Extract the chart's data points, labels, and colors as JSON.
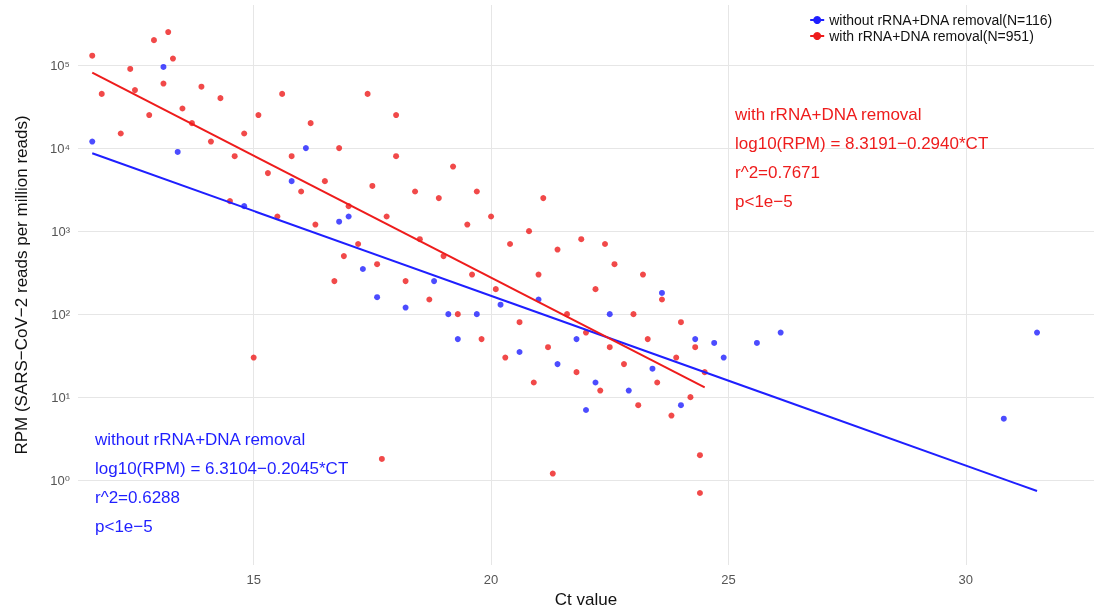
{
  "chart_data": {
    "type": "scatter",
    "xlabel": "Ct value",
    "ylabel": "RPM (SARS−CoV−2 reads per million reads)",
    "xlim": [
      11.3,
      32.7
    ],
    "xticks": [
      15,
      20,
      25,
      30
    ],
    "ylim": [
      0.095,
      530000
    ],
    "yticks": [
      {
        "value": 1,
        "label": "10⁰"
      },
      {
        "value": 10,
        "label": "10¹"
      },
      {
        "value": 100,
        "label": "10²"
      },
      {
        "value": 1000,
        "label": "10³"
      },
      {
        "value": 10000,
        "label": "10⁴"
      },
      {
        "value": 100000,
        "label": "10⁵"
      }
    ],
    "log": "y",
    "grid": true,
    "legend": "top right",
    "series": [
      {
        "color": "#1f1fff",
        "marker": "circle",
        "x": [
          11.6,
          13.1,
          13.4,
          14.8,
          15.8,
          16.8,
          17.3,
          17.6,
          18.2,
          18.8,
          19.3,
          19.7,
          20.2,
          20.6,
          21.0,
          21.4,
          21.8,
          22.2,
          22.5,
          22.9,
          23.4,
          23.6,
          24.0,
          24.3,
          24.9,
          25.6,
          26.1,
          30.8,
          31.5,
          24.7,
          16.1,
          17.0,
          19.1,
          22.0
        ],
        "values": [
          12000,
          95000,
          9000,
          2000,
          4000,
          1300,
          350,
          160,
          120,
          250,
          50,
          100,
          130,
          35,
          150,
          25,
          50,
          15,
          100,
          12,
          22,
          180,
          8,
          50,
          30,
          45,
          60,
          5.5,
          60,
          45,
          10000,
          1500,
          100,
          7
        ]
      },
      {
        "color": "#ee1c1c",
        "marker": "circle",
        "x": [
          11.6,
          11.8,
          12.2,
          12.4,
          12.5,
          12.8,
          12.9,
          13.1,
          13.2,
          13.3,
          13.5,
          13.7,
          13.9,
          14.1,
          14.3,
          14.5,
          14.6,
          14.8,
          15.0,
          15.1,
          15.3,
          15.5,
          15.6,
          15.8,
          16.0,
          16.2,
          16.3,
          16.5,
          16.7,
          16.8,
          17.0,
          17.2,
          17.4,
          17.5,
          17.6,
          17.7,
          17.8,
          18.0,
          18.2,
          18.4,
          18.5,
          18.7,
          18.9,
          19.0,
          19.2,
          19.3,
          19.5,
          19.6,
          19.8,
          20.0,
          20.1,
          20.3,
          20.4,
          20.6,
          20.8,
          20.9,
          21.0,
          21.2,
          21.3,
          21.4,
          21.6,
          21.8,
          21.9,
          22.0,
          22.2,
          22.3,
          22.5,
          22.6,
          22.8,
          23.0,
          23.1,
          23.3,
          23.5,
          23.6,
          23.8,
          23.9,
          24.0,
          24.2,
          24.3,
          24.4,
          24.4,
          24.5,
          18.0,
          16.9,
          19.7,
          21.1,
          22.4,
          23.2
        ],
        "values": [
          130000,
          45000,
          15000,
          90000,
          50000,
          25000,
          200000,
          60000,
          250000,
          120000,
          30000,
          20000,
          55000,
          12000,
          40000,
          2300,
          8000,
          15000,
          30,
          25000,
          5000,
          1500,
          45000,
          8000,
          3000,
          20000,
          1200,
          4000,
          250,
          10000,
          2000,
          700,
          45000,
          3500,
          400,
          1.8,
          1500,
          8000,
          250,
          3000,
          800,
          150,
          2500,
          500,
          6000,
          100,
          1200,
          300,
          50,
          1500,
          200,
          30,
          700,
          80,
          1000,
          15,
          300,
          40,
          1.2,
          600,
          100,
          20,
          800,
          60,
          200,
          12,
          40,
          400,
          25,
          100,
          8,
          50,
          15,
          150,
          6,
          30,
          80,
          10,
          40,
          2,
          0.7,
          20,
          25000,
          500,
          3000,
          2500,
          700,
          300
        ]
      },
      {
        "type": "line",
        "marker": "none",
        "name": "without rRNA+DNA removal(N=116)",
        "color": "#1f1fff",
        "x": [
          11.6,
          31.5
        ],
        "values": [
          8670,
          0.74
        ]
      },
      {
        "type": "line",
        "marker": "none",
        "name": "with rRNA+DNA removal(N=951)",
        "color": "#ee1c1c",
        "x": [
          11.6,
          24.5
        ],
        "values": [
          81100,
          13.1
        ]
      }
    ],
    "annotations": [
      "without rRNA+DNA removal\nlog10(RPM) = 6.3104−0.2045*CT\nr^2=0.6288\np<1e−5",
      "with rRNA+DNA removal\nlog10(RPM) = 8.3191−0.2940*CT\nr^2=0.7671\np<1e−5"
    ]
  }
}
